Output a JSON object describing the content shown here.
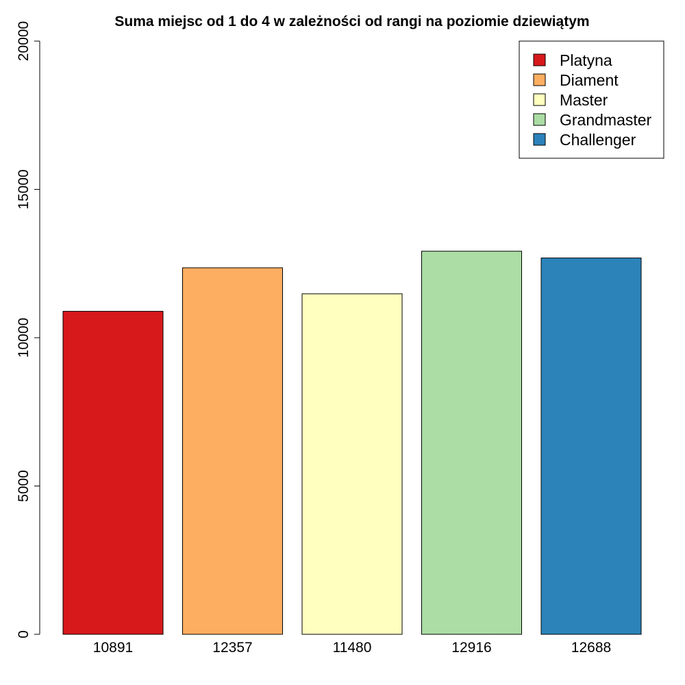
{
  "chart_data": {
    "type": "bar",
    "title": "Suma miejsc od 1 do 4 w zależności od rangi na poziomie dziewiątym",
    "xlabel": "",
    "ylabel": "",
    "ylim": [
      0,
      20000
    ],
    "yticks": [
      0,
      5000,
      10000,
      15000,
      20000
    ],
    "categories": [
      "10891",
      "12357",
      "11480",
      "12916",
      "12688"
    ],
    "values": [
      10891,
      12357,
      11480,
      12916,
      12688
    ],
    "colors": [
      "#d7191c",
      "#fdae61",
      "#ffffbf",
      "#abdda4",
      "#2b83ba"
    ],
    "grid": false,
    "legend": {
      "placement": "top-right",
      "entries": [
        "Platyna",
        "Diament",
        "Master",
        "Grandmaster",
        "Challenger"
      ]
    }
  }
}
